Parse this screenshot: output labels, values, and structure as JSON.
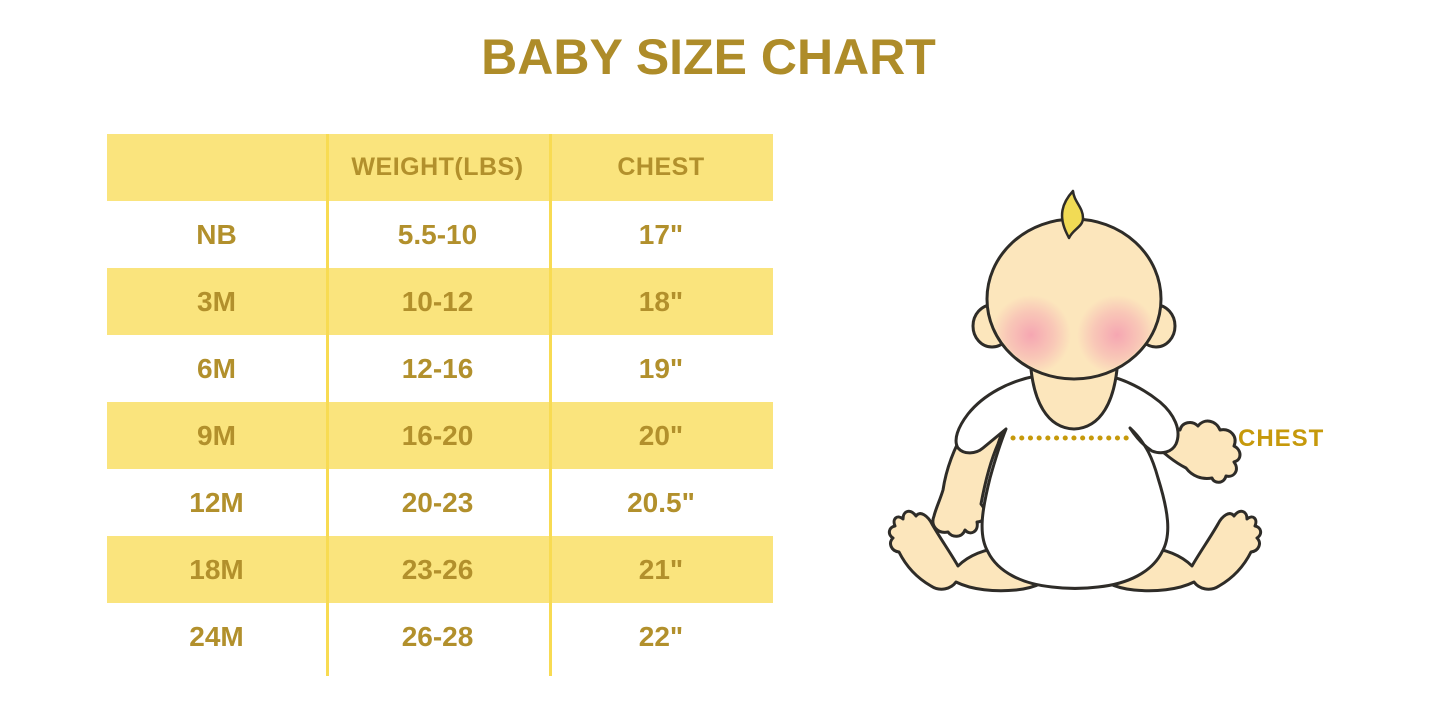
{
  "page": {
    "title": "BABY SIZE CHART"
  },
  "chart_data": {
    "type": "table",
    "title": "BABY SIZE CHART",
    "columns": [
      "",
      "WEIGHT(LBS)",
      "CHEST"
    ],
    "rows": [
      [
        "NB",
        "5.5-10",
        "17\""
      ],
      [
        "3M",
        "10-12",
        "18\""
      ],
      [
        "6M",
        "12-16",
        "19\""
      ],
      [
        "9M",
        "16-20",
        "20\""
      ],
      [
        "12M",
        "20-23",
        "20.5\""
      ],
      [
        "18M",
        "23-26",
        "21\""
      ],
      [
        "24M",
        "26-28",
        "22\""
      ]
    ],
    "layout": {
      "striped_rows_yellow": [
        "header",
        "3M",
        "9M",
        "18M"
      ],
      "grid": "vertical column separators only",
      "legend_position": "none"
    }
  },
  "figure": {
    "chest_label": "CHEST"
  },
  "colors": {
    "title_gold": "#AE8C29",
    "table_text_gold": "#B2902C",
    "row_yellow": "#FAE47D",
    "separator_yellow": "#F8DB52",
    "chest_label_gold": "#C6990B",
    "dotted_line_gold": "#C6990B",
    "baby_skin": "#FCE6BC",
    "baby_outline": "#2E2C28",
    "hair_yellow": "#F1DB55",
    "cheek_pink": "#F49BB0",
    "background": "#FFFFFF"
  }
}
